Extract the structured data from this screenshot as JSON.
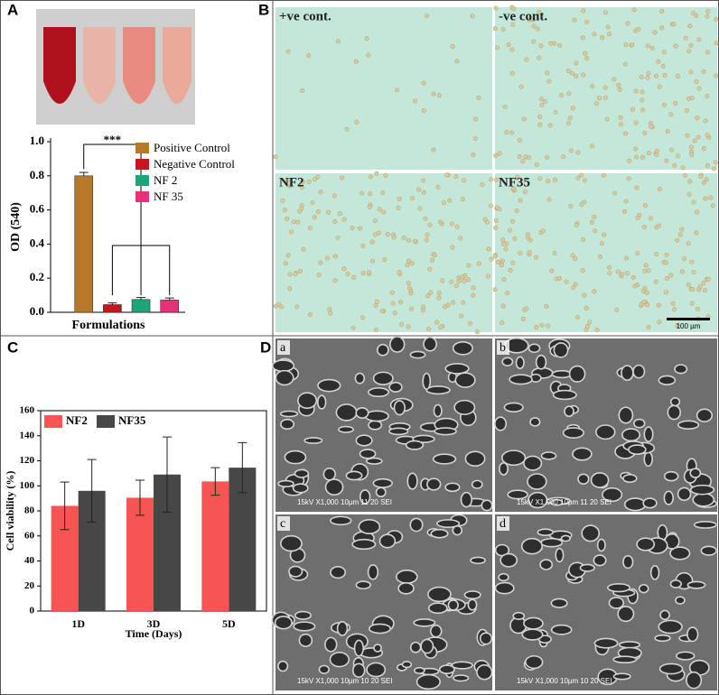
{
  "panel_labels": [
    "A",
    "B",
    "C",
    "D"
  ],
  "micrographs": {
    "labels": [
      "+ve cont.",
      "-ve cont.",
      "NF2",
      "NF35"
    ],
    "scale_bar": "100 µm"
  },
  "sem": {
    "labels": [
      "a",
      "b",
      "c",
      "d"
    ],
    "captions": [
      "15kV   X1,000   10µm        11 20 SEI",
      "15kV   X1,000   10µm        11 20 SEI",
      "15kV   X1,000   10µm        10 20 SEI",
      "15kV   X1,000   10µm        10 20 SEI"
    ]
  },
  "chart_data": [
    {
      "type": "bar",
      "ylabel": "OD (540)",
      "xlabel": "Formulations",
      "annotation": "***",
      "series": [
        {
          "name": "Positive Control",
          "color": "#b7782a",
          "values": [
            0.8
          ],
          "errors": [
            0.02
          ]
        },
        {
          "name": "Negative Control",
          "color": "#c8141c",
          "values": [
            0.045
          ],
          "errors": [
            0.01
          ]
        },
        {
          "name": "NF 2",
          "color": "#1fa37a",
          "values": [
            0.075
          ],
          "errors": [
            0.012
          ]
        },
        {
          "name": "NF 35",
          "color": "#e8307a",
          "values": [
            0.072
          ],
          "errors": [
            0.012
          ]
        }
      ],
      "ylim": [
        0,
        1.0
      ],
      "yticks": [
        {
          "value": 0,
          "label": "0.0"
        },
        0.2,
        0.4,
        0.6,
        0.8,
        {
          "value": 1.0,
          "label": "1.0"
        }
      ]
    },
    {
      "type": "bar",
      "ylabel": "Cell viability (%)",
      "xlabel": "Time (Days)",
      "categories": [
        "1D",
        "3D",
        "5D"
      ],
      "series": [
        {
          "name": "NF2",
          "color": "#f75454",
          "values": [
            84,
            90.5,
            103.5
          ],
          "errors": [
            19,
            14,
            11
          ]
        },
        {
          "name": "NF35",
          "color": "#474747",
          "values": [
            96,
            109,
            114.5
          ],
          "errors": [
            25,
            30,
            20
          ]
        }
      ],
      "ylim": [
        0,
        160
      ],
      "yticks": [
        0,
        20,
        40,
        60,
        80,
        100,
        120,
        140,
        160
      ],
      "legend": "upper left"
    }
  ]
}
